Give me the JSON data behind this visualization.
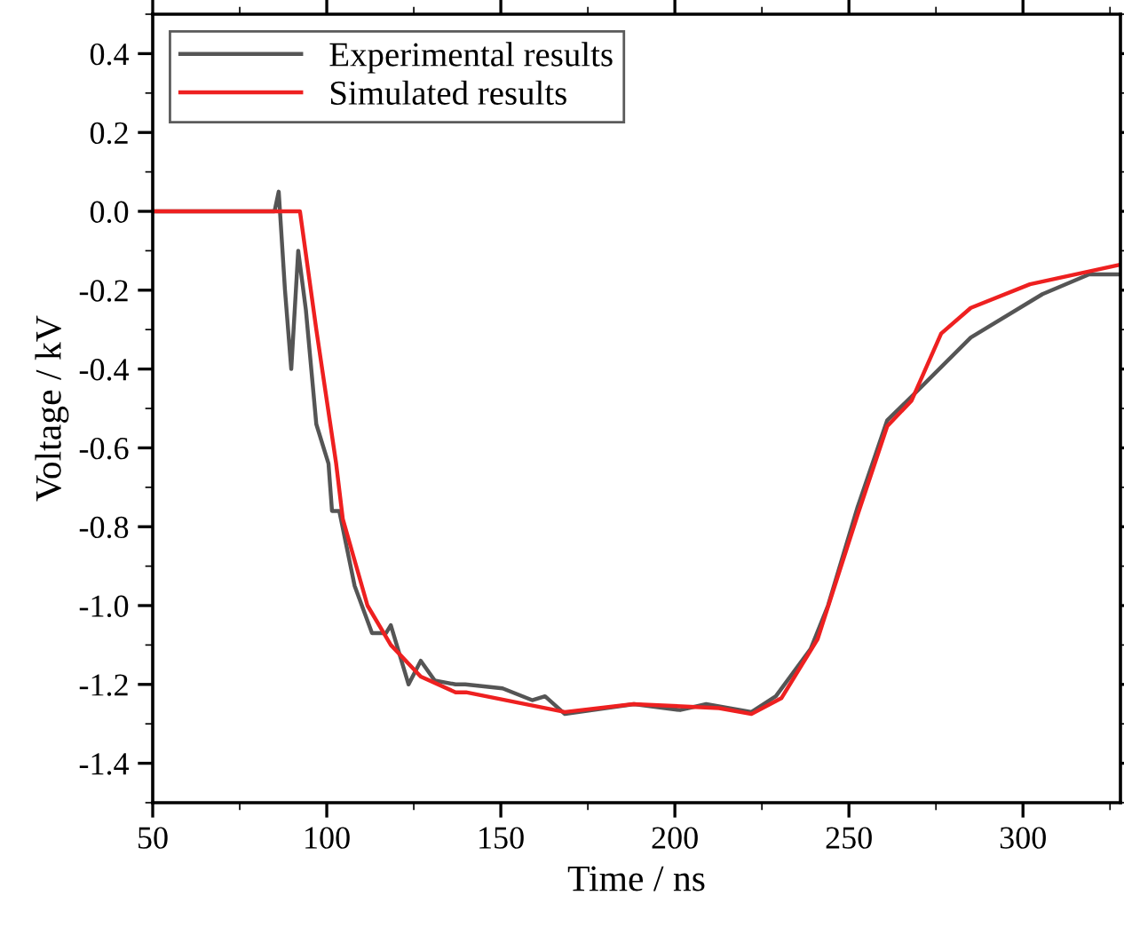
{
  "chart_data": {
    "type": "line",
    "xlabel": "Time / ns",
    "ylabel": "Voltage / kV",
    "xlim": [
      50,
      328
    ],
    "ylim": [
      -1.5,
      0.5
    ],
    "xticks": [
      50,
      100,
      150,
      200,
      250,
      300
    ],
    "yticks": [
      {
        "value": -1.4,
        "label": "-1.4"
      },
      {
        "value": -1.2,
        "label": "-1.2"
      },
      {
        "value": -1.0,
        "label": "-1.0"
      },
      {
        "value": -0.8,
        "label": "-0.8"
      },
      {
        "value": -0.6,
        "label": "-0.6"
      },
      {
        "value": -0.4,
        "label": "-0.4"
      },
      {
        "value": -0.2,
        "label": "-0.2"
      },
      {
        "value": 0.0,
        "label": "0.0"
      },
      {
        "value": 0.2,
        "label": "0.2"
      },
      {
        "value": 0.4,
        "label": "0.4"
      }
    ],
    "legend": "top left",
    "grid": false,
    "marker": "none",
    "line_style": "solid",
    "series": [
      {
        "name": "Experimental results",
        "color": "#555555",
        "x": [
          50,
          70,
          85,
          86.2,
          88,
          89.8,
          91.8,
          94,
          97,
          100.5,
          101.5,
          103.6,
          108,
          113,
          117,
          118.4,
          123.5,
          127,
          131,
          137,
          139.8,
          150.5,
          159,
          162.7,
          168.4,
          188.3,
          201.5,
          209,
          222,
          229,
          239,
          244,
          252.5,
          261,
          268,
          285,
          305.6,
          319,
          328
        ],
        "values": [
          0,
          0,
          0,
          0.05,
          -0.2,
          -0.4,
          -0.1,
          -0.25,
          -0.54,
          -0.64,
          -0.76,
          -0.76,
          -0.95,
          -1.07,
          -1.07,
          -1.05,
          -1.2,
          -1.14,
          -1.19,
          -1.2,
          -1.2,
          -1.21,
          -1.24,
          -1.23,
          -1.275,
          -1.25,
          -1.265,
          -1.25,
          -1.27,
          -1.23,
          -1.11,
          -1.0,
          -0.75,
          -0.53,
          -0.47,
          -0.32,
          -0.21,
          -0.16,
          -0.16
        ]
      },
      {
        "name": "Simulated results",
        "color": "#ee2020",
        "x": [
          50,
          92.3,
          97,
          102.7,
          104.6,
          111.7,
          118.4,
          127,
          137,
          140,
          168.4,
          188,
          212.7,
          222,
          230.6,
          241,
          252.5,
          261,
          268,
          276.5,
          285,
          302,
          328
        ],
        "values": [
          0,
          0,
          -0.3,
          -0.64,
          -0.78,
          -1.0,
          -1.1,
          -1.18,
          -1.22,
          -1.22,
          -1.27,
          -1.25,
          -1.26,
          -1.275,
          -1.235,
          -1.085,
          -0.77,
          -0.545,
          -0.48,
          -0.31,
          -0.245,
          -0.185,
          -0.135
        ]
      }
    ]
  }
}
